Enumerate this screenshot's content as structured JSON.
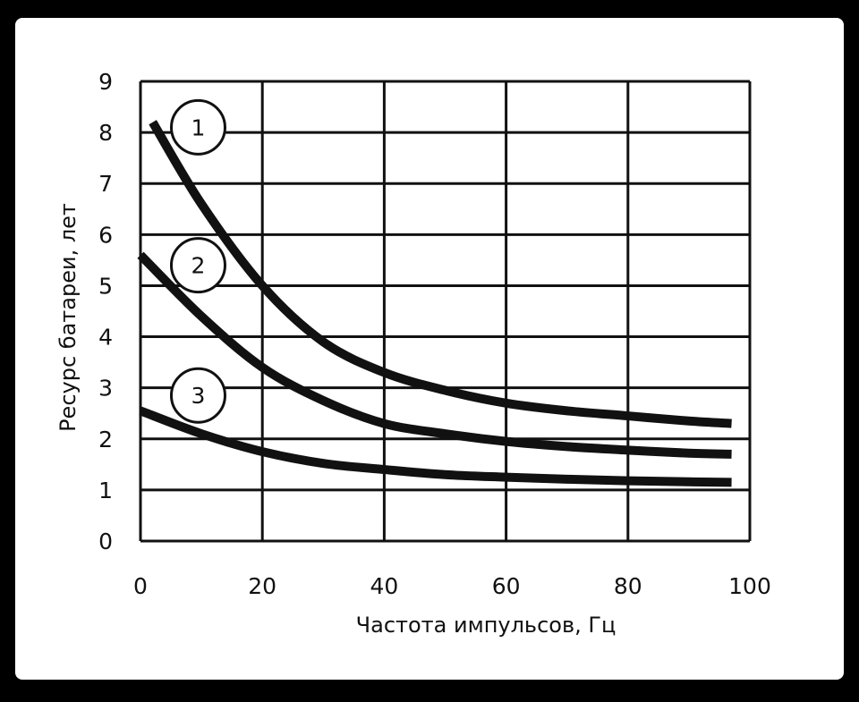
{
  "chart_data": {
    "type": "line",
    "title": "",
    "xlabel": "Частота импульсов, Гц",
    "ylabel": "Ресурс батареи, лет",
    "xlim": [
      0,
      100
    ],
    "ylim": [
      0,
      9
    ],
    "x_ticks": [
      "0",
      "20",
      "40",
      "60",
      "80",
      "100"
    ],
    "y_ticks": [
      "0",
      "1",
      "2",
      "3",
      "4",
      "5",
      "6",
      "7",
      "8",
      "9"
    ],
    "grid": true,
    "legend": "numbered circle markers on curves",
    "series": [
      {
        "name": "1",
        "x": [
          2,
          10,
          20,
          30,
          40,
          50,
          60,
          70,
          80,
          90,
          97
        ],
        "values": [
          8.2,
          6.6,
          5.0,
          3.9,
          3.3,
          2.95,
          2.7,
          2.55,
          2.45,
          2.35,
          2.3
        ]
      },
      {
        "name": "2",
        "x": [
          0,
          10,
          20,
          30,
          40,
          50,
          60,
          70,
          80,
          90,
          97
        ],
        "values": [
          5.6,
          4.4,
          3.4,
          2.75,
          2.3,
          2.1,
          1.95,
          1.85,
          1.78,
          1.72,
          1.7
        ]
      },
      {
        "name": "3",
        "x": [
          0,
          10,
          20,
          30,
          40,
          50,
          60,
          70,
          80,
          90,
          97
        ],
        "values": [
          2.55,
          2.1,
          1.75,
          1.52,
          1.4,
          1.3,
          1.25,
          1.21,
          1.18,
          1.16,
          1.15
        ]
      }
    ],
    "markers": [
      {
        "label": "1",
        "x": 8,
        "y": 8.1
      },
      {
        "label": "2",
        "x": 8,
        "y": 5.4
      },
      {
        "label": "3",
        "x": 8,
        "y": 2.85
      }
    ]
  }
}
